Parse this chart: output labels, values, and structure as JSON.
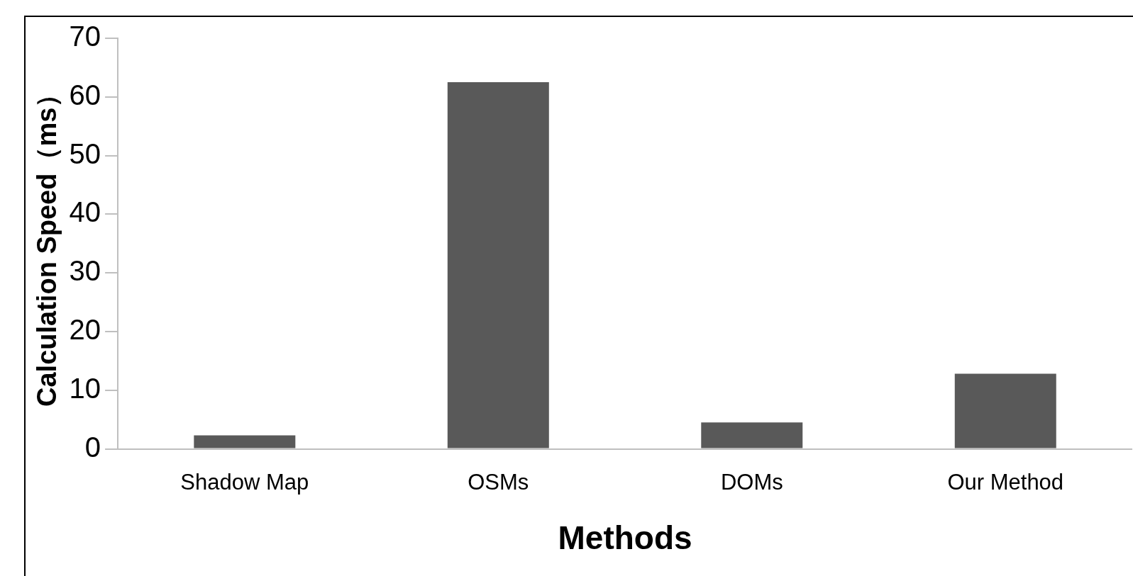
{
  "chart_data": {
    "type": "bar",
    "xlabel": "Methods",
    "ylabel": "Calculation Speed（ms）",
    "categories": [
      "Shadow Map",
      "OSMs",
      "DOMs",
      "Our Method"
    ],
    "values": [
      2.3,
      62.5,
      4.5,
      12.8
    ],
    "color": "#595959",
    "ylim": [
      0,
      70
    ],
    "yticks": [
      0,
      10,
      20,
      30,
      40,
      50,
      60,
      70
    ],
    "grid": false,
    "legend": false
  }
}
